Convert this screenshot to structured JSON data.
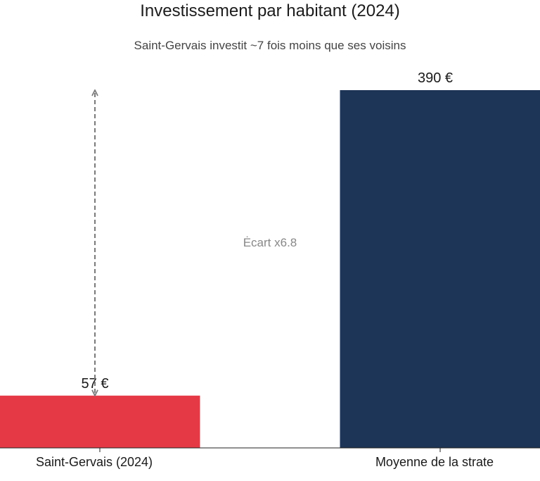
{
  "chart_data": {
    "type": "bar",
    "title": "Investissement par habitant (2024)",
    "subtitle": "Saint-Gervais investit ~7 fois moins que ses voisins",
    "categories": [
      "Saint-Gervais (2024)",
      "Moyenne de la strate"
    ],
    "values": [
      57,
      390
    ],
    "value_labels": [
      "57 €",
      "390 €"
    ],
    "unit": "€",
    "ylim": [
      0,
      390
    ],
    "grid": false,
    "colors": [
      "#E63946",
      "#1D3557"
    ],
    "annotation": {
      "text": "Ėcart x6.8",
      "from_value": 57,
      "to_value": 390,
      "style": "dashed double arrow"
    }
  }
}
